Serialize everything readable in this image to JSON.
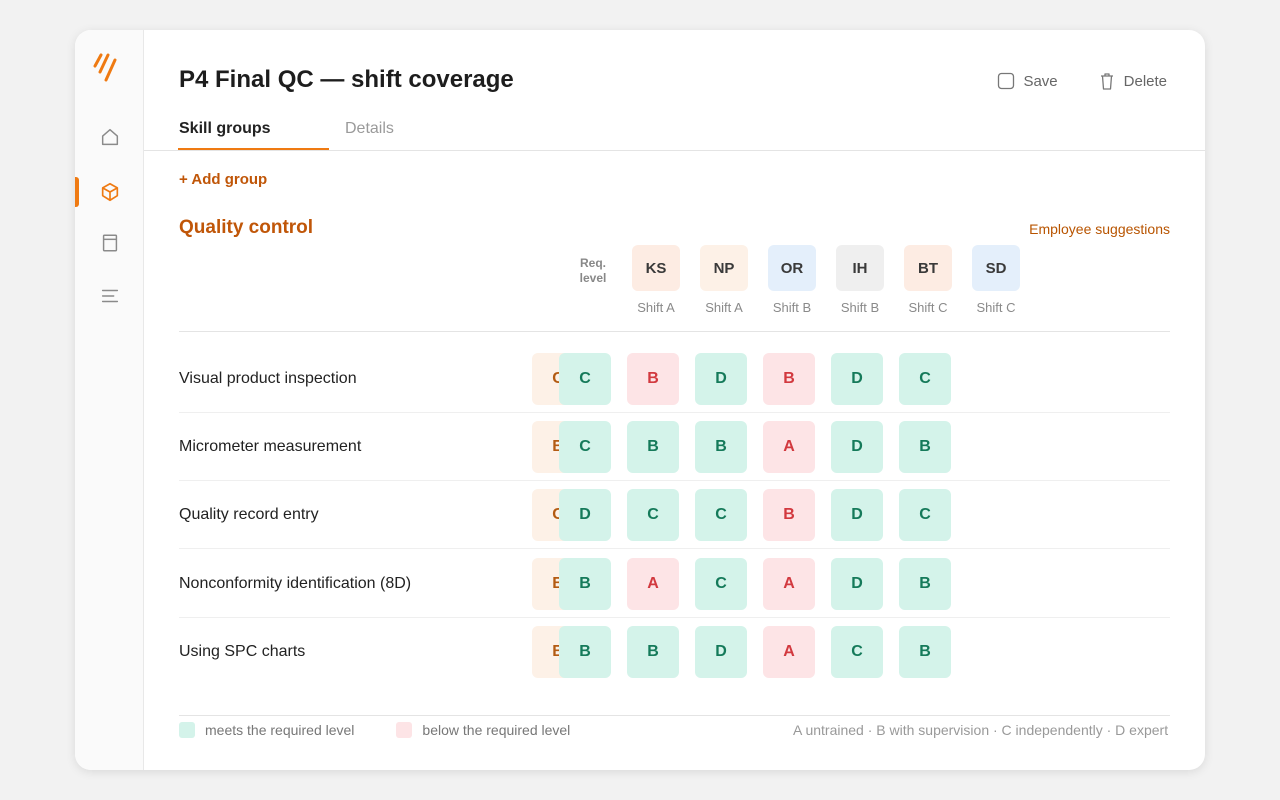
{
  "header": {
    "title": "P4 Final QC — shift coverage",
    "save_label": "Save",
    "delete_label": "Delete"
  },
  "tabs": [
    {
      "label": "Skill groups",
      "active": true
    },
    {
      "label": "Details",
      "active": false
    }
  ],
  "add_group_label": "+ Add group",
  "section": {
    "title": "Quality control",
    "suggestions_label": "Employee suggestions",
    "req_label_line1": "Req.",
    "req_label_line2": "level"
  },
  "employees": [
    {
      "initials": "KS",
      "shift": "Shift A",
      "color": "#fdece3"
    },
    {
      "initials": "NP",
      "shift": "Shift A",
      "color": "#fdf1e7"
    },
    {
      "initials": "OR",
      "shift": "Shift B",
      "color": "#e4effb"
    },
    {
      "initials": "IH",
      "shift": "Shift B",
      "color": "#efefef"
    },
    {
      "initials": "BT",
      "shift": "Shift C",
      "color": "#fdece3"
    },
    {
      "initials": "SD",
      "shift": "Shift C",
      "color": "#e4effb"
    }
  ],
  "skills": [
    {
      "name": "Visual product inspection",
      "required": "C",
      "levels": [
        "C",
        "B",
        "D",
        "B",
        "D",
        "C"
      ]
    },
    {
      "name": "Micrometer measurement",
      "required": "B",
      "levels": [
        "C",
        "B",
        "B",
        "A",
        "D",
        "B"
      ]
    },
    {
      "name": "Quality record entry",
      "required": "C",
      "levels": [
        "D",
        "C",
        "C",
        "B",
        "D",
        "C"
      ]
    },
    {
      "name": "Nonconformity identification (8D)",
      "required": "B",
      "levels": [
        "B",
        "A",
        "C",
        "A",
        "D",
        "B"
      ]
    },
    {
      "name": "Using SPC charts",
      "required": "B",
      "levels": [
        "B",
        "B",
        "D",
        "A",
        "C",
        "B"
      ]
    }
  ],
  "legend": {
    "meets": "meets the required level",
    "below": "below the required level",
    "scale": "A untrained · B with supervision · C independently · D expert"
  },
  "colors": {
    "accent": "#ef7a12",
    "meets": "#d4f3ea",
    "below": "#fde4e6",
    "required": "#fdf1e7"
  },
  "sidebar": {
    "items": [
      {
        "icon": "home-icon"
      },
      {
        "icon": "cube-icon",
        "active": true
      },
      {
        "icon": "panel-icon"
      },
      {
        "icon": "list-icon"
      }
    ]
  }
}
